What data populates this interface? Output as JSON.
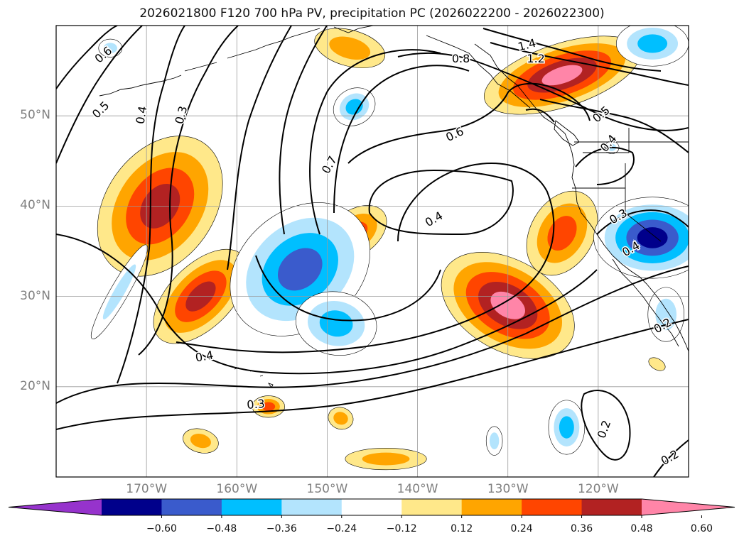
{
  "title": "2026021800 F120 700 hPa PV, precipitation PC (2026022200 - 2026022300)",
  "map": {
    "lon_range": [
      -180,
      -110
    ],
    "lat_range": [
      10,
      60
    ],
    "lat_ticks": [
      {
        "value": 20,
        "label": "20°N"
      },
      {
        "value": 30,
        "label": "30°N"
      },
      {
        "value": 40,
        "label": "40°N"
      },
      {
        "value": 50,
        "label": "50°N"
      }
    ],
    "lon_ticks": [
      {
        "value": -170,
        "label": "170°W"
      },
      {
        "value": -160,
        "label": "160°W"
      },
      {
        "value": -150,
        "label": "150°W"
      },
      {
        "value": -140,
        "label": "140°W"
      },
      {
        "value": -130,
        "label": "130°W"
      },
      {
        "value": -120,
        "label": "120°W"
      }
    ],
    "grid": true
  },
  "contour_labels": [
    {
      "text": "0.6",
      "lon": -174.8,
      "lat": 56.8,
      "rot": -40
    },
    {
      "text": "0.5",
      "lon": -175.1,
      "lat": 50.7,
      "rot": -45
    },
    {
      "text": "0.4",
      "lon": -170.6,
      "lat": 50.1,
      "rot": -80
    },
    {
      "text": "0.3",
      "lon": -166.2,
      "lat": 50.1,
      "rot": -75
    },
    {
      "text": "0.4",
      "lon": -163.6,
      "lat": 23.4,
      "rot": -10
    },
    {
      "text": "0.3",
      "lon": -157.9,
      "lat": 18.1,
      "rot": -5
    },
    {
      "text": "0.7",
      "lon": -149.8,
      "lat": 44.6,
      "rot": -60
    },
    {
      "text": "0.6",
      "lon": -135.9,
      "lat": 48.0,
      "rot": -25
    },
    {
      "text": "0.4",
      "lon": -138.2,
      "lat": 38.6,
      "rot": -30
    },
    {
      "text": "0.8",
      "lon": -135.2,
      "lat": 56.4,
      "rot": 0
    },
    {
      "text": "1.4",
      "lon": -127.9,
      "lat": 57.9,
      "rot": -15
    },
    {
      "text": "1.2",
      "lon": -126.9,
      "lat": 56.4,
      "rot": 0
    },
    {
      "text": "0.5",
      "lon": -119.7,
      "lat": 50.2,
      "rot": -40
    },
    {
      "text": "0.4",
      "lon": -118.9,
      "lat": 47.0,
      "rot": -50
    },
    {
      "text": "0.3",
      "lon": -117.8,
      "lat": 38.9,
      "rot": -30
    },
    {
      "text": "0.4",
      "lon": -116.4,
      "lat": 35.3,
      "rot": -30
    },
    {
      "text": "0.2",
      "lon": -119.4,
      "lat": 15.3,
      "rot": -70
    },
    {
      "text": "0.2",
      "lon": -112.1,
      "lat": 12.2,
      "rot": -30
    },
    {
      "text": "0.2",
      "lon": -112.9,
      "lat": 26.8,
      "rot": -30
    }
  ],
  "precip_blobs": [
    {
      "sign": "pos",
      "levels": [
        0.12,
        0.24,
        0.36,
        0.48
      ],
      "center": [
        -168.5,
        40.0
      ],
      "axis": [
        6.0,
        8.5
      ],
      "rot": 35
    },
    {
      "sign": "pos",
      "levels": [
        0.12,
        0.24,
        0.36,
        0.48
      ],
      "center": [
        -164.0,
        30.0
      ],
      "axis": [
        3.5,
        6.5
      ],
      "rot": 45
    },
    {
      "sign": "pos",
      "levels": [
        0.12,
        0.24,
        0.36,
        0.48,
        0.6
      ],
      "center": [
        -130.0,
        29.0
      ],
      "axis": [
        8.0,
        5.0
      ],
      "rot": 30
    },
    {
      "sign": "pos",
      "levels": [
        0.12,
        0.24,
        0.36
      ],
      "center": [
        -124.0,
        37.0
      ],
      "axis": [
        3.5,
        5.0
      ],
      "rot": 30
    },
    {
      "sign": "pos",
      "levels": [
        0.12,
        0.24,
        0.36
      ],
      "center": [
        -147.0,
        37.0
      ],
      "axis": [
        4.0,
        2.5
      ],
      "rot": -35
    },
    {
      "sign": "pos",
      "levels": [
        0.12,
        0.24,
        0.36,
        0.48,
        0.6
      ],
      "center": [
        -124.0,
        54.5
      ],
      "axis": [
        9.0,
        3.5
      ],
      "rot": -18
    },
    {
      "sign": "pos",
      "levels": [
        0.12,
        0.24
      ],
      "center": [
        -147.5,
        57.5
      ],
      "axis": [
        4.0,
        2.0
      ],
      "rot": 15
    },
    {
      "sign": "pos",
      "levels": [
        0.12,
        0.24,
        0.36
      ],
      "center": [
        -156.5,
        17.8
      ],
      "axis": [
        1.8,
        1.2
      ],
      "rot": 0
    },
    {
      "sign": "pos",
      "levels": [
        0.12,
        0.24
      ],
      "center": [
        -148.5,
        16.5
      ],
      "axis": [
        1.4,
        1.2
      ],
      "rot": 20
    },
    {
      "sign": "pos",
      "levels": [
        0.12,
        0.24
      ],
      "center": [
        -164.0,
        14.0
      ],
      "axis": [
        2.0,
        1.3
      ],
      "rot": 15
    },
    {
      "sign": "pos",
      "levels": [
        0.12,
        0.24
      ],
      "center": [
        -143.5,
        12.0
      ],
      "axis": [
        4.5,
        1.2
      ],
      "rot": 0
    },
    {
      "sign": "pos",
      "levels": [
        0.12
      ],
      "center": [
        -113.5,
        22.5
      ],
      "axis": [
        1.0,
        0.6
      ],
      "rot": 30
    },
    {
      "sign": "neg",
      "levels": [
        -0.12,
        -0.24,
        -0.36,
        -0.48
      ],
      "center": [
        -153.0,
        33.0
      ],
      "axis": [
        6.5,
        8.5
      ],
      "rot": 50
    },
    {
      "sign": "neg",
      "levels": [
        -0.12,
        -0.24,
        -0.36
      ],
      "center": [
        -149.0,
        27.0
      ],
      "axis": [
        4.5,
        3.5
      ],
      "rot": 10
    },
    {
      "sign": "neg",
      "levels": [
        -0.12,
        -0.24,
        -0.36,
        -0.48,
        -0.6
      ],
      "center": [
        -114.0,
        36.5
      ],
      "axis": [
        6.5,
        4.5
      ],
      "rot": 0
    },
    {
      "sign": "neg",
      "levels": [
        -0.12,
        -0.24
      ],
      "center": [
        -112.5,
        28.0
      ],
      "axis": [
        2.0,
        3.0
      ],
      "rot": 0
    },
    {
      "sign": "neg",
      "levels": [
        -0.12,
        -0.24,
        -0.36
      ],
      "center": [
        -147.0,
        51.0
      ],
      "axis": [
        2.4,
        2.0
      ],
      "rot": -30
    },
    {
      "sign": "neg",
      "levels": [
        -0.12,
        -0.24,
        -0.36
      ],
      "center": [
        -114.0,
        58.0
      ],
      "axis": [
        4.0,
        2.5
      ],
      "rot": 0
    },
    {
      "sign": "neg",
      "levels": [
        -0.12,
        -0.24
      ],
      "center": [
        -174.0,
        57.5
      ],
      "axis": [
        1.3,
        1.0
      ],
      "rot": 0
    },
    {
      "sign": "neg",
      "levels": [
        -0.12,
        -0.24,
        -0.36
      ],
      "center": [
        -123.5,
        15.5
      ],
      "axis": [
        2.0,
        3.0
      ],
      "rot": 0
    },
    {
      "sign": "neg",
      "levels": [
        -0.12,
        -0.24
      ],
      "center": [
        -131.5,
        14.0
      ],
      "axis": [
        0.9,
        1.6
      ],
      "rot": 0
    },
    {
      "sign": "neg",
      "levels": [
        -0.12,
        -0.24
      ],
      "center": [
        -173.0,
        30.5
      ],
      "axis": [
        1.0,
        6.0
      ],
      "rot": 30
    },
    {
      "sign": "neg",
      "levels": [
        -0.12,
        -0.24
      ],
      "center": [
        -118.5,
        46.5
      ],
      "axis": [
        0.8,
        0.7
      ],
      "rot": 0
    }
  ],
  "colorbar": {
    "ticks": [
      "−0.60",
      "−0.48",
      "−0.36",
      "−0.24",
      "−0.12",
      "0.12",
      "0.24",
      "0.36",
      "0.48",
      "0.60"
    ],
    "colors": [
      "#9633cc",
      "#00008b",
      "#3a5bcc",
      "#00bfff",
      "#b3e4fd",
      "#ffffff",
      "#ffe88a",
      "#ffa500",
      "#ff4500",
      "#b22222",
      "#ff85a8"
    ],
    "extend": "both"
  }
}
